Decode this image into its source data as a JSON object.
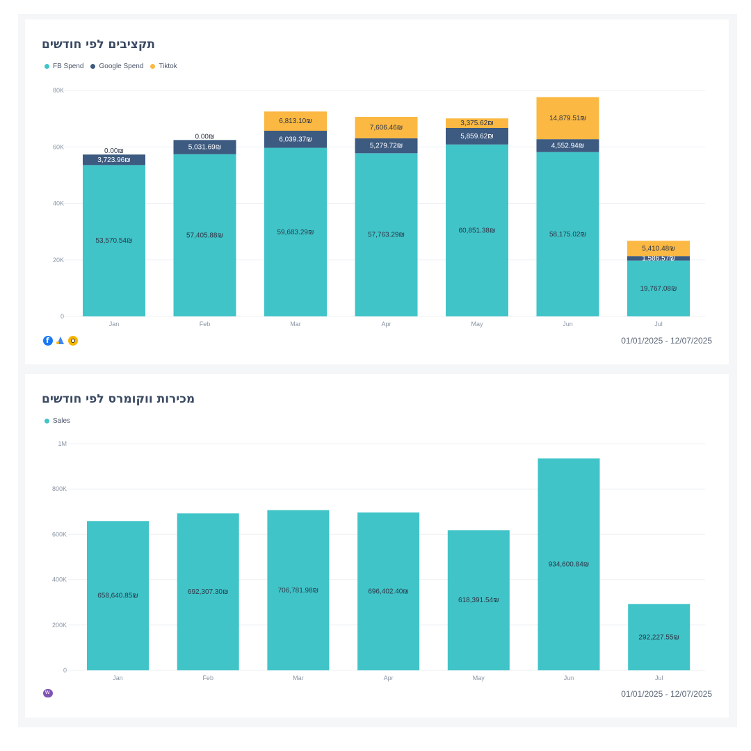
{
  "charts": [
    {
      "title": "תקציבים לפי חודשים",
      "date_range": "01/01/2025 - 12/07/2025",
      "source_icons": [
        "facebook-icon",
        "google-ads-icon",
        "tiktok-icon"
      ]
    },
    {
      "title": "מכירות ווקומרס לפי חודשים",
      "date_range": "01/01/2025 - 12/07/2025",
      "source_icons": [
        "woocommerce-icon"
      ]
    }
  ],
  "chart_data": [
    {
      "type": "bar",
      "stacked": true,
      "categories": [
        "Jan",
        "Feb",
        "Mar",
        "Apr",
        "May",
        "Jun",
        "Jul"
      ],
      "series": [
        {
          "name": "FB Spend",
          "color": "#40c4c8",
          "values": [
            53570.54,
            57405.88,
            59683.29,
            57763.29,
            60851.38,
            58175.02,
            19767.08
          ],
          "labels": [
            "53,570.54₪",
            "57,405.88₪",
            "59,683.29₪",
            "57,763.29₪",
            "60,851.38₪",
            "58,175.02₪",
            "19,767.08₪"
          ]
        },
        {
          "name": "Google Spend",
          "color": "#3d5a80",
          "values": [
            3723.96,
            5031.69,
            6039.37,
            5279.72,
            5859.62,
            4552.94,
            1586.57
          ],
          "labels": [
            "3,723.96₪",
            "5,031.69₪",
            "6,039.37₪",
            "5,279.72₪",
            "5,859.62₪",
            "4,552.94₪",
            "1,586.57₪"
          ]
        },
        {
          "name": "Tiktok",
          "color": "#fbb843",
          "values": [
            0,
            0,
            6813.1,
            7606.46,
            3375.62,
            14879.51,
            5410.48
          ],
          "labels": [
            "0.00₪",
            "0.00₪",
            "6,813.10₪",
            "7,606.46₪",
            "3,375.62₪",
            "14,879.51₪",
            "5,410.48₪"
          ]
        }
      ],
      "yticks": [
        "0",
        "20K",
        "40K",
        "60K",
        "80K"
      ],
      "ylim": [
        0,
        80000
      ],
      "grid": true,
      "legend": "top-left"
    },
    {
      "type": "bar",
      "categories": [
        "Jan",
        "Feb",
        "Mar",
        "Apr",
        "May",
        "Jun",
        "Jul"
      ],
      "series": [
        {
          "name": "Sales",
          "color": "#40c4c8",
          "values": [
            658640.85,
            692307.3,
            706781.98,
            696402.4,
            618391.54,
            934600.84,
            292227.55
          ],
          "labels": [
            "658,640.85₪",
            "692,307.30₪",
            "706,781.98₪",
            "696,402.40₪",
            "618,391.54₪",
            "934,600.84₪",
            "292,227.55₪"
          ]
        }
      ],
      "yticks": [
        "0",
        "200K",
        "400K",
        "600K",
        "800K",
        "1M"
      ],
      "ylim": [
        0,
        1000000
      ],
      "grid": true,
      "legend": "top-left"
    }
  ]
}
